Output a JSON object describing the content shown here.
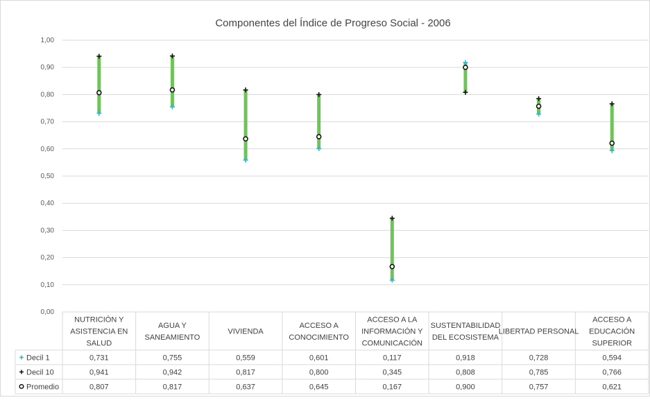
{
  "chart_data": {
    "type": "range",
    "title": "Componentes del Índice de Progreso Social - 2006",
    "categories": [
      [
        "NUTRICIÓN Y",
        "ASISTENCIA EN",
        "SALUD"
      ],
      [
        "AGUA Y",
        "SANEAMIENTO"
      ],
      [
        "VIVIENDA"
      ],
      [
        "ACCESO A",
        "CONOCIMIENTO"
      ],
      [
        "ACCESO A LA",
        "INFORMACIÓN Y",
        "COMUNICACIÓN"
      ],
      [
        "SUSTENTABILIDAD",
        "DEL ECOSISTEMA"
      ],
      [
        "LIBERTAD PERSONAL"
      ],
      [
        "ACCESO A",
        "EDUCACIÓN",
        "SUPERIOR"
      ]
    ],
    "ylim": [
      0,
      1
    ],
    "yticks": [
      "0,00",
      "0,10",
      "0,20",
      "0,30",
      "0,40",
      "0,50",
      "0,60",
      "0,70",
      "0,80",
      "0,90",
      "1,00"
    ],
    "grid": true,
    "series": [
      {
        "name": "Decil 1",
        "marker": "plus",
        "color": "#2ab7d6",
        "values": [
          0.731,
          0.755,
          0.559,
          0.601,
          0.117,
          0.918,
          0.728,
          0.594
        ],
        "labels": [
          "0,731",
          "0,755",
          "0,559",
          "0,601",
          "0,117",
          "0,918",
          "0,728",
          "0,594"
        ]
      },
      {
        "name": "Decil 10",
        "marker": "plus",
        "color": "#111111",
        "values": [
          0.941,
          0.942,
          0.817,
          0.8,
          0.345,
          0.808,
          0.785,
          0.766
        ],
        "labels": [
          "0,941",
          "0,942",
          "0,817",
          "0,800",
          "0,345",
          "0,808",
          "0,785",
          "0,766"
        ]
      },
      {
        "name": "Promedio",
        "marker": "circle",
        "color": "#111111",
        "values": [
          0.807,
          0.817,
          0.637,
          0.645,
          0.167,
          0.9,
          0.757,
          0.621
        ],
        "labels": [
          "0,807",
          "0,817",
          "0,637",
          "0,645",
          "0,167",
          "0,900",
          "0,757",
          "0,621"
        ]
      }
    ],
    "range_bar_color": "#70c35a",
    "legend": "table"
  }
}
